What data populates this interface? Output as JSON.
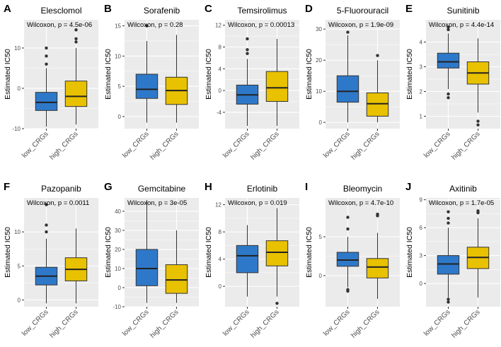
{
  "figure_title": "",
  "colors": {
    "low": "#2E78C9",
    "high": "#E8C100",
    "panel_bg": "#EBEBEB",
    "grid": "#FFFFFF",
    "outlier": "#333333"
  },
  "chart_data": [
    {
      "type": "boxplot",
      "letter": "A",
      "title": "Elesclomol",
      "annotation": "Wilcoxon, p = 4.5e-06",
      "ylabel": "Estimated IC50",
      "ylim": [
        -10,
        17
      ],
      "yticks": [
        -10,
        0,
        10
      ],
      "categories": [
        "low_CRGs",
        "high_CRGs"
      ],
      "series": [
        {
          "name": "low_CRGs",
          "q1": -5.5,
          "median": -3.5,
          "q3": -1,
          "whisker_low": -9.5,
          "whisker_high": 5,
          "outliers": [
            6,
            8,
            10
          ]
        },
        {
          "name": "high_CRGs",
          "q1": -4.5,
          "median": -2,
          "q3": 1.8,
          "whisker_low": -9,
          "whisker_high": 10,
          "outliers": [
            11.5,
            12.3,
            14.5
          ]
        }
      ]
    },
    {
      "type": "boxplot",
      "letter": "B",
      "title": "Sorafenib",
      "annotation": "Wilcoxon, p = 0.28",
      "ylabel": "Estimated IC50",
      "ylim": [
        -2,
        16
      ],
      "yticks": [
        0,
        5,
        10,
        15
      ],
      "categories": [
        "low_CRGs",
        "high_CRGs"
      ],
      "series": [
        {
          "name": "low_CRGs",
          "q1": 3,
          "median": 4.5,
          "q3": 7,
          "whisker_low": -1,
          "whisker_high": 12.5,
          "outliers": [
            15
          ]
        },
        {
          "name": "high_CRGs",
          "q1": 2,
          "median": 4.3,
          "q3": 6.5,
          "whisker_low": -1,
          "whisker_high": 13.5,
          "outliers": []
        }
      ]
    },
    {
      "type": "boxplot",
      "letter": "C",
      "title": "Temsirolimus",
      "annotation": "Wilcoxon, p = 0.00013",
      "ylabel": "Estimated IC50",
      "ylim": [
        -7,
        13
      ],
      "yticks": [
        -4,
        0,
        4,
        8,
        12
      ],
      "categories": [
        "low_CRGs",
        "high_CRGs"
      ],
      "series": [
        {
          "name": "low_CRGs",
          "q1": -2.5,
          "median": -0.8,
          "q3": 1,
          "whisker_low": -6.5,
          "whisker_high": 5.8,
          "outliers": [
            6.8,
            7.5,
            9.5
          ]
        },
        {
          "name": "high_CRGs",
          "q1": -2,
          "median": 0.5,
          "q3": 3.5,
          "whisker_low": -6.5,
          "whisker_high": 9.5,
          "outliers": []
        }
      ]
    },
    {
      "type": "boxplot",
      "letter": "D",
      "title": "5-Fluorouracil",
      "annotation": "Wilcoxon, p = 1.9e-09",
      "ylabel": "Estimated IC50",
      "ylim": [
        -2,
        33
      ],
      "yticks": [
        0,
        10,
        20,
        30
      ],
      "categories": [
        "low_CRGs",
        "high_CRGs"
      ],
      "series": [
        {
          "name": "low_CRGs",
          "q1": 6.5,
          "median": 10,
          "q3": 15,
          "whisker_low": 0,
          "whisker_high": 28,
          "outliers": [
            29
          ]
        },
        {
          "name": "high_CRGs",
          "q1": 2,
          "median": 6,
          "q3": 9.5,
          "whisker_low": 0,
          "whisker_high": 20,
          "outliers": [
            21.5
          ]
        }
      ]
    },
    {
      "type": "boxplot",
      "letter": "E",
      "title": "Sunitinib",
      "annotation": "Wilcoxon, p = 4.4e-14",
      "ylabel": "Estimated IC50",
      "ylim": [
        0.5,
        4.9
      ],
      "yticks": [
        1,
        2,
        3,
        4
      ],
      "categories": [
        "low_CRGs",
        "high_CRGs"
      ],
      "series": [
        {
          "name": "low_CRGs",
          "q1": 2.95,
          "median": 3.2,
          "q3": 3.55,
          "whisker_low": 2.1,
          "whisker_high": 4.35,
          "outliers": [
            1.75,
            1.9,
            4.5,
            4.6
          ]
        },
        {
          "name": "high_CRGs",
          "q1": 2.3,
          "median": 2.75,
          "q3": 3.2,
          "whisker_low": 1.15,
          "whisker_high": 4.15,
          "outliers": [
            0.65,
            0.8
          ]
        }
      ]
    },
    {
      "type": "boxplot",
      "letter": "F",
      "title": "Pazopanib",
      "annotation": "Wilcoxon, p = 0.0011",
      "ylabel": "Estimated IC50",
      "ylim": [
        -1,
        15
      ],
      "yticks": [
        0,
        5,
        10
      ],
      "categories": [
        "low_CRGs",
        "high_CRGs"
      ],
      "series": [
        {
          "name": "low_CRGs",
          "q1": 2.2,
          "median": 3.5,
          "q3": 4.8,
          "whisker_low": -0.5,
          "whisker_high": 9,
          "outliers": [
            10,
            11,
            14
          ]
        },
        {
          "name": "high_CRGs",
          "q1": 2.8,
          "median": 4.5,
          "q3": 6.2,
          "whisker_low": -0.5,
          "whisker_high": 10.5,
          "outliers": []
        }
      ]
    },
    {
      "type": "boxplot",
      "letter": "G",
      "title": "Gemcitabine",
      "annotation": "Wilcoxon, p = 3e-05",
      "ylabel": "Estimated IC50",
      "ylim": [
        -10,
        47
      ],
      "yticks": [
        -10,
        0,
        10,
        20,
        30,
        40
      ],
      "categories": [
        "low_CRGs",
        "high_CRGs"
      ],
      "series": [
        {
          "name": "low_CRGs",
          "q1": 1,
          "median": 10,
          "q3": 20,
          "whisker_low": -8,
          "whisker_high": 46,
          "outliers": []
        },
        {
          "name": "high_CRGs",
          "q1": -3,
          "median": 4,
          "q3": 12,
          "whisker_low": -8,
          "whisker_high": 30,
          "outliers": []
        }
      ]
    },
    {
      "type": "boxplot",
      "letter": "H",
      "title": "Erlotinib",
      "annotation": "Wilcoxon, p = 0.019",
      "ylabel": "Estimated IC50",
      "ylim": [
        -3,
        13
      ],
      "yticks": [
        0,
        4,
        8,
        12
      ],
      "categories": [
        "low_CRGs",
        "high_CRGs"
      ],
      "series": [
        {
          "name": "low_CRGs",
          "q1": 2,
          "median": 4.5,
          "q3": 6,
          "whisker_low": -1.5,
          "whisker_high": 9,
          "outliers": []
        },
        {
          "name": "high_CRGs",
          "q1": 3,
          "median": 5,
          "q3": 6.7,
          "whisker_low": -1.5,
          "whisker_high": 11.5,
          "outliers": [
            -2.5
          ]
        }
      ]
    },
    {
      "type": "boxplot",
      "letter": "I",
      "title": "Bleomycin",
      "annotation": "Wilcoxon, p = 4.7e-10",
      "ylabel": "Estimated IC50",
      "ylim": [
        -4,
        10
      ],
      "yticks": [
        0,
        5
      ],
      "categories": [
        "low_CRGs",
        "high_CRGs"
      ],
      "series": [
        {
          "name": "low_CRGs",
          "q1": 1.2,
          "median": 2,
          "q3": 3,
          "whisker_low": -1.5,
          "whisker_high": 5,
          "outliers": [
            -2,
            -1.8,
            6,
            7.5
          ]
        },
        {
          "name": "high_CRGs",
          "q1": -0.3,
          "median": 1.1,
          "q3": 2.2,
          "whisker_low": -3,
          "whisker_high": 5.5,
          "outliers": [
            7.7,
            7.9
          ]
        }
      ]
    },
    {
      "type": "boxplot",
      "letter": "J",
      "title": "Axitinib",
      "annotation": "Wilcoxon, p = 1.7e-05",
      "ylabel": "Estimated IC50",
      "ylim": [
        -2.5,
        9.2
      ],
      "yticks": [
        0,
        3,
        6,
        9
      ],
      "categories": [
        "low_CRGs",
        "high_CRGs"
      ],
      "series": [
        {
          "name": "low_CRGs",
          "q1": 1,
          "median": 2.1,
          "q3": 3,
          "whisker_low": -1.5,
          "whisker_high": 6,
          "outliers": [
            -1.7,
            -2,
            6.5,
            7,
            7.7
          ]
        },
        {
          "name": "high_CRGs",
          "q1": 1.6,
          "median": 2.8,
          "q3": 3.9,
          "whisker_low": -1.5,
          "whisker_high": 7,
          "outliers": [
            7.6,
            7.8
          ]
        }
      ]
    }
  ]
}
